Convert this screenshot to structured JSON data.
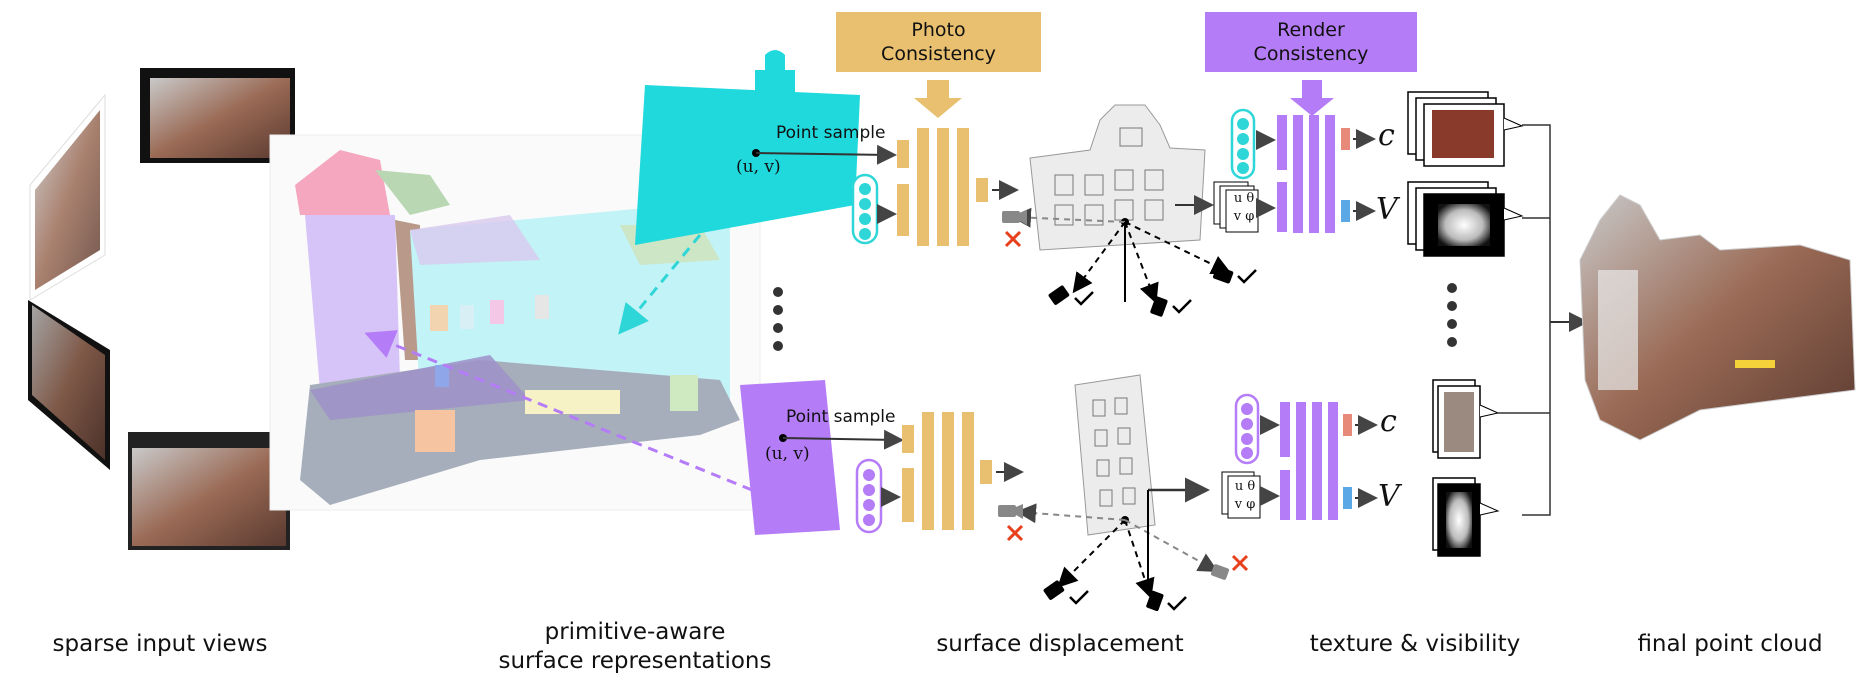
{
  "boxes": {
    "photo": {
      "line1": "Photo",
      "line2": "Consistency",
      "color": "#e8c06f"
    },
    "render": {
      "line1": "Render",
      "line2": "Consistency",
      "color": "#b57cf7"
    }
  },
  "labels": {
    "point_sample_top": "Point sample",
    "point_sample_bottom": "Point sample",
    "uv_top": "(u, v)",
    "uv_bottom": "(u, v)",
    "out_c_top": "c",
    "out_v_top": "V",
    "out_c_bottom": "c",
    "out_v_bottom": "V",
    "param_u": "u",
    "param_theta": "θ",
    "param_v": "v",
    "param_phi": "φ"
  },
  "captions": {
    "input": "sparse input views",
    "primitives_line1": "primitive-aware",
    "primitives_line2": "surface representations",
    "displacement": "surface displacement",
    "texture": "texture & visibility",
    "final": "final point cloud"
  },
  "colors": {
    "cyan": "#2fd6d8",
    "purple": "#b57cf7",
    "orange": "#e8c06f",
    "red_x": "#e8401c",
    "salmon": "#e88a7a",
    "blue_bar": "#5aa9e6"
  },
  "icons": [
    "camera-icon",
    "check-icon",
    "cross-icon",
    "ellipsis-icon",
    "arrow-icon"
  ]
}
